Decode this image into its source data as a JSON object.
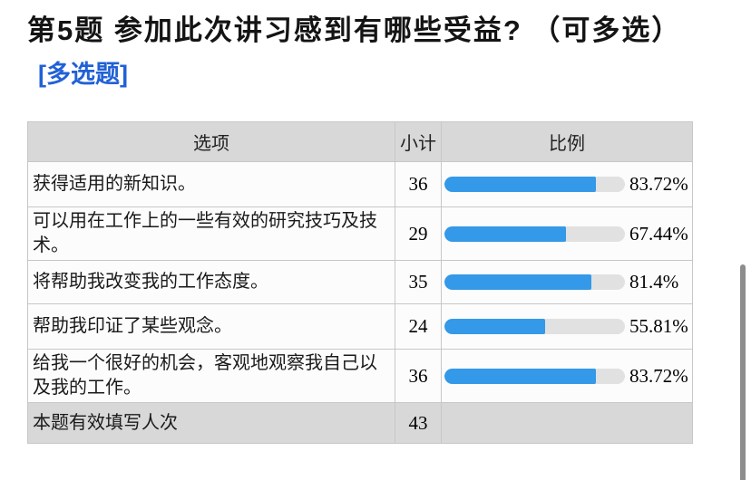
{
  "page": {
    "title": "第5题  参加此次讲习感到有哪些受益?  （可多选）",
    "type_badge": "[多选题]",
    "accent_blue": "#2161d6",
    "bar_blue": "#3399e8",
    "bar_track_gray": "#e1e1e1",
    "header_gray": "#d8d8d8"
  },
  "table": {
    "headers": [
      "选项",
      "小计",
      "比例"
    ],
    "rows": [
      {
        "option": "获得适用的新知识。",
        "count": "36",
        "percent": "83.72%",
        "percent_value": 83.72
      },
      {
        "option": "可以用在工作上的一些有效的研究技巧及技术。",
        "count": "29",
        "percent": "67.44%",
        "percent_value": 67.44
      },
      {
        "option": "将帮助我改变我的工作态度。",
        "count": "35",
        "percent": "81.4%",
        "percent_value": 81.4
      },
      {
        "option": "帮助我印证了某些观念。",
        "count": "24",
        "percent": "55.81%",
        "percent_value": 55.81
      },
      {
        "option": "给我一个很好的机会，客观地观察我自己以及我的工作。",
        "count": "36",
        "percent": "83.72%",
        "percent_value": 83.72
      }
    ],
    "footer": {
      "label": "本题有效填写人次",
      "count": "43"
    }
  },
  "chart_data": {
    "type": "bar",
    "orientation": "horizontal",
    "title": "第5题 参加此次讲习感到有哪些受益? （可多选）",
    "subtitle": "[多选题]",
    "categories": [
      "获得适用的新知识。",
      "可以用在工作上的一些有效的研究技巧及技术。",
      "将帮助我改变我的工作态度。",
      "帮助我印证了某些观念。",
      "给我一个很好的机会，客观地观察我自己以及我的工作。"
    ],
    "series": [
      {
        "name": "小计",
        "values": [
          36,
          29,
          35,
          24,
          36
        ]
      },
      {
        "name": "比例(%)",
        "values": [
          83.72,
          67.44,
          81.4,
          55.81,
          83.72
        ]
      }
    ],
    "value_labels": [
      "83.72%",
      "67.44%",
      "81.4%",
      "55.81%",
      "83.72%"
    ],
    "valid_responses": 43,
    "xlim": [
      0,
      100
    ],
    "grid": false,
    "legend_position": "none"
  }
}
